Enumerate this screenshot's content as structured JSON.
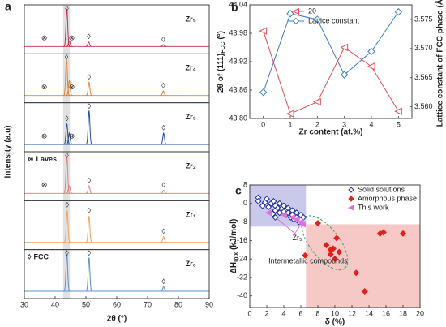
{
  "chart_data": [
    {
      "type": "spectra",
      "panel_label": "a",
      "xlabel": "2θ (°)",
      "ylabel": "Intensity (a.u)",
      "xlim": [
        30,
        90
      ],
      "xticks": [
        30,
        40,
        50,
        60,
        70,
        80,
        90
      ],
      "highlight": [
        42.6,
        44.8
      ],
      "legend": [
        {
          "symbol": "⊗",
          "name": "Laves"
        },
        {
          "symbol": "◊",
          "name": "FCC"
        }
      ],
      "patterns": [
        {
          "name": "Zr₅",
          "color": "#c0304a",
          "peak_x": [
            43.8,
            44.6,
            50.9,
            75.1
          ],
          "peak_h": [
            1.0,
            0.15,
            0.12,
            0.05
          ],
          "fcc_marks": [
            43.8,
            50.9,
            75.1
          ],
          "laves_marks": [
            36.5,
            45.4
          ]
        },
        {
          "name": "Zr₄",
          "color": "#e8802e",
          "peak_x": [
            43.7,
            44.6,
            51.0,
            75.1
          ],
          "peak_h": [
            0.95,
            0.4,
            0.35,
            0.12
          ],
          "fcc_marks": [
            43.7,
            51.0,
            75.1
          ],
          "laves_marks": [
            36.5,
            45.4
          ]
        },
        {
          "name": "Zr₃",
          "color": "#1f4e9c",
          "peak_x": [
            43.8,
            44.6,
            51.0,
            75.2
          ],
          "peak_h": [
            0.55,
            0.3,
            0.9,
            0.3
          ],
          "fcc_marks": [
            43.8,
            51.0,
            75.2
          ],
          "laves_marks": [
            36.5,
            45.4
          ]
        },
        {
          "name": "Zr₂",
          "color": "#e57c7c",
          "peak_x": [
            43.8,
            44.6,
            51.0,
            75.2
          ],
          "peak_h": [
            1.0,
            0.2,
            0.2,
            0.08
          ],
          "fcc_marks": [
            43.8,
            51.0,
            75.2
          ],
          "laves_marks": [
            36.5
          ]
        },
        {
          "name": "Zr₁",
          "color": "#f4a259",
          "peak_x": [
            43.9,
            51.0,
            75.2
          ],
          "peak_h": [
            0.85,
            0.7,
            0.15
          ],
          "fcc_marks": [
            43.9,
            51.0,
            75.2
          ],
          "laves_marks": []
        },
        {
          "name": "Zr₀",
          "color": "#5b8fd0",
          "peak_x": [
            43.8,
            51.0,
            75.2
          ],
          "peak_h": [
            1.0,
            0.9,
            0.12
          ],
          "fcc_marks": [
            43.8,
            51.0,
            75.2
          ],
          "laves_marks": []
        }
      ]
    },
    {
      "type": "line",
      "panel_label": "b",
      "xlabel": "Zr content (at.%)",
      "ylabel": {
        "text": "2θ of (111)",
        "sub": "FCC",
        "unit": " (°)"
      },
      "y2label": "Lattice constant of FCC phase (Å)",
      "x": [
        0,
        1,
        2,
        3,
        4,
        5
      ],
      "xlim": [
        -0.5,
        5.5
      ],
      "xticks": [
        0,
        1,
        2,
        3,
        4,
        5
      ],
      "ylim": [
        43.8,
        44.04
      ],
      "yticks": [
        {
          "value": 43.8,
          "label": "43.80"
        },
        43.86,
        43.92,
        43.98,
        44.04
      ],
      "y2lim": [
        3.558,
        3.5775
      ],
      "y2ticks": [
        {
          "value": 3.56,
          "label": "3.560"
        },
        3.565,
        {
          "value": 3.57,
          "label": "3.570"
        },
        3.575
      ],
      "series": [
        {
          "name": "2θ",
          "color": "#e0505a",
          "marker": "triangle-left",
          "values": [
            43.985,
            43.81,
            43.835,
            43.95,
            43.91,
            43.815
          ]
        },
        {
          "name": "Lattice constant",
          "color": "#3b7fc4",
          "marker": "diamond",
          "axis": "y2",
          "values": [
            3.5625,
            3.576,
            3.575,
            3.5655,
            3.5695,
            3.5763
          ]
        }
      ]
    },
    {
      "type": "scatter",
      "panel_label": "c",
      "xlabel": "δ (%)",
      "ylabel": {
        "text": "ΔH",
        "sub": "mix",
        "unit": " (kJ/mol)"
      },
      "xlim": [
        0,
        20
      ],
      "xticks": [
        0,
        2,
        4,
        6,
        8,
        10,
        12,
        14,
        16,
        18,
        20
      ],
      "ylim": [
        -45,
        8
      ],
      "yticks": [
        8,
        0,
        -8,
        -16,
        -24,
        -32,
        -40
      ],
      "regions": [
        {
          "x": [
            0,
            6.6
          ],
          "y": [
            -10,
            8
          ],
          "color": "#c9c9ec"
        },
        {
          "x": [
            6.6,
            20
          ],
          "y": [
            -45,
            -9
          ],
          "color": "#f6c9c6"
        }
      ],
      "annotations": [
        {
          "text": "Intermetallic compounds",
          "color": "#2aa36a"
        },
        {
          "text": "Zr₅",
          "color": "#d662d6"
        }
      ],
      "series": [
        {
          "name": "Solid solutions",
          "color": "#1f2f9c",
          "marker": "open-diamond",
          "x": [
            1,
            1,
            1.5,
            1.8,
            2,
            2.2,
            2.5,
            2.8,
            3,
            3,
            3.3,
            3.5,
            3.5,
            3.8,
            4,
            4,
            4.2,
            4.5,
            4.5,
            4.8,
            5,
            5,
            5.2,
            5.5,
            5.5,
            5.8,
            6,
            6,
            6.3,
            3,
            2.7
          ],
          "y": [
            2.5,
            1,
            -1,
            0.5,
            2,
            -1.5,
            0,
            1,
            -1,
            -3,
            -2,
            -4,
            0,
            -2,
            -3.5,
            -1,
            -5,
            -2,
            -4,
            -6,
            -3,
            -5,
            -7,
            -4,
            -6,
            -8,
            -5,
            -7,
            -6,
            -6,
            -4.5
          ]
        },
        {
          "name": "Amorphous phase",
          "color": "#e0201a",
          "marker": "diamond",
          "x": [
            6.5,
            8,
            9,
            9.5,
            9.5,
            9.8,
            10,
            10.2,
            10.5,
            12.5,
            13.5,
            15.3,
            15.7,
            18
          ],
          "y": [
            -22.5,
            -8.5,
            -18,
            -20,
            -22,
            -19.5,
            -24,
            -15,
            -21,
            -30,
            -38,
            -13,
            -12.5,
            -13
          ]
        },
        {
          "name": "This work",
          "color": "#e070e0",
          "marker": "triangle-left",
          "x": [
            2.2,
            4,
            5,
            5.5,
            6,
            6.2
          ],
          "y": [
            -4,
            -5,
            -6,
            -7,
            -8,
            -9
          ]
        }
      ]
    }
  ]
}
